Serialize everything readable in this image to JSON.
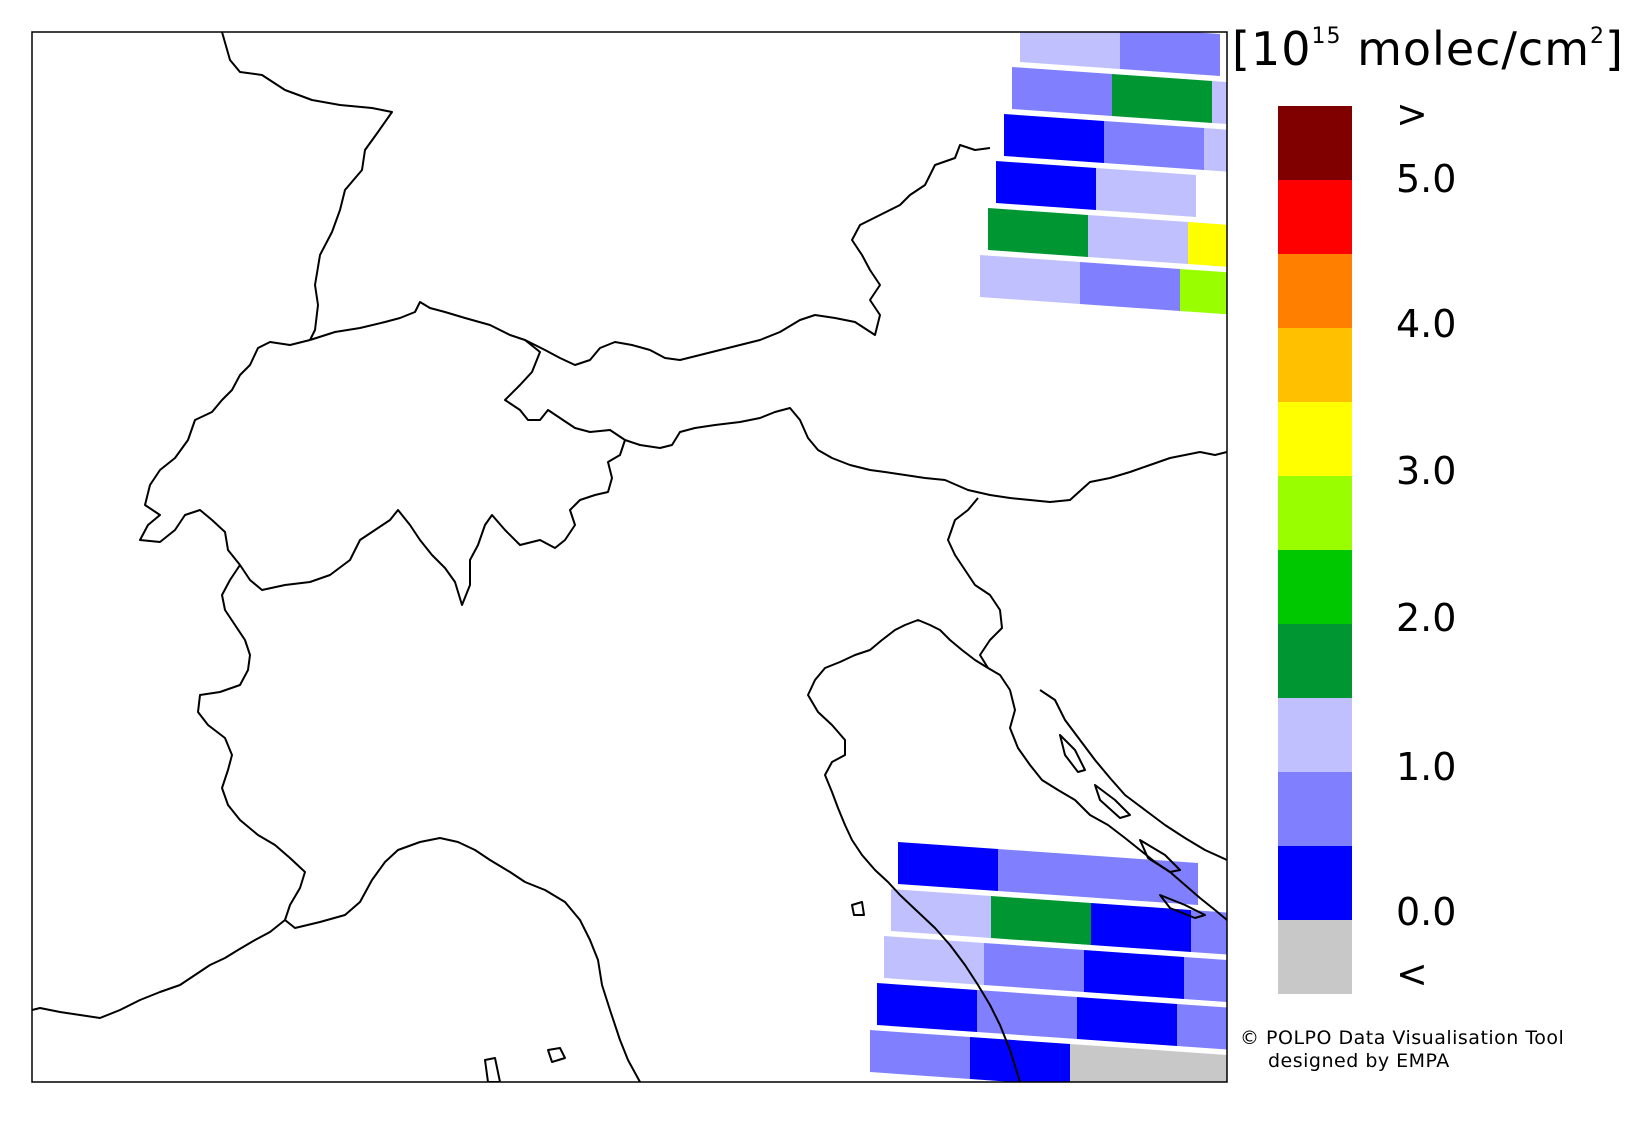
{
  "colorbar": {
    "unit_prefix": "[10",
    "unit_exponent": "15",
    "unit_suffix": " molec/cm",
    "unit_sq": "2",
    "unit_close": "]",
    "over_label": ">",
    "under_label": "<",
    "ticks": [
      "5.0",
      "4.0",
      "3.0",
      "2.0",
      "1.0",
      "0.0"
    ],
    "bins": [
      {
        "color": "#800000",
        "range": "> 5.0"
      },
      {
        "color": "#ff0000",
        "range": "4.5–5.0"
      },
      {
        "color": "#ff8000",
        "range": "4.0–4.5"
      },
      {
        "color": "#ffc000",
        "range": "3.5–4.0"
      },
      {
        "color": "#ffff00",
        "range": "3.0–3.5"
      },
      {
        "color": "#99ff00",
        "range": "2.5–3.0"
      },
      {
        "color": "#00c800",
        "range": "2.0–2.5"
      },
      {
        "color": "#009632",
        "range": "1.5–2.0"
      },
      {
        "color": "#c0c0ff",
        "range": "1.0–1.5"
      },
      {
        "color": "#8080ff",
        "range": "0.5–1.0"
      },
      {
        "color": "#0000ff",
        "range": "0.0–0.5"
      },
      {
        "color": "#c8c8c8",
        "range": "< 0.0"
      }
    ]
  },
  "credit": {
    "line1": "© POLPO Data Visualisation Tool",
    "line2": "designed by EMPA"
  },
  "swaths": {
    "north": [
      [
        "#c0c0ff",
        "#8080ff"
      ],
      [
        "#8080ff",
        "#009632",
        "#c0c0ff"
      ],
      [
        "#0000ff",
        "#8080ff",
        "#c0c0ff"
      ],
      [
        "#0000ff",
        "#c0c0ff"
      ],
      [
        "#009632",
        "#c0c0ff",
        "#ffff00"
      ],
      [
        "#c0c0ff",
        "#8080ff",
        "#99ff00"
      ]
    ],
    "south": [
      [
        "#0000ff",
        "#8080ff",
        "#8080ff"
      ],
      [
        "#c0c0ff",
        "#009632",
        "#0000ff",
        "#8080ff"
      ],
      [
        "#c0c0ff",
        "#8080ff",
        "#0000ff",
        "#8080ff"
      ],
      [
        "#0000ff",
        "#8080ff",
        "#0000ff",
        "#8080ff"
      ],
      [
        "#8080ff",
        "#0000ff",
        "#c8c8c8",
        "#c8c8c8"
      ]
    ]
  }
}
